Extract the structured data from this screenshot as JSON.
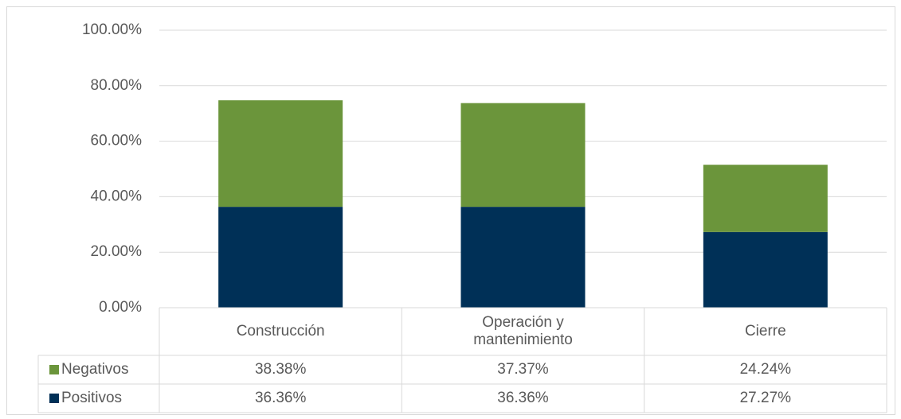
{
  "chart_data": {
    "type": "bar",
    "stacked": true,
    "categories": [
      "Construcción",
      "Operación y mantenimiento",
      "Cierre"
    ],
    "series": [
      {
        "name": "Positivos",
        "color": "#003057",
        "values": [
          36.36,
          36.36,
          27.27
        ],
        "value_labels": [
          "36.36%",
          "36.36%",
          "27.27%"
        ]
      },
      {
        "name": "Negativos",
        "color": "#6b953b",
        "values": [
          38.38,
          37.37,
          24.24
        ],
        "value_labels": [
          "38.38%",
          "37.37%",
          "24.24%"
        ]
      }
    ],
    "ylim": [
      0,
      100
    ],
    "yticks": [
      {
        "value": 0,
        "label": "0.00%"
      },
      {
        "value": 20,
        "label": "20.00%"
      },
      {
        "value": 40,
        "label": "40.00%"
      },
      {
        "value": 60,
        "label": "60.00%"
      },
      {
        "value": 80,
        "label": "80.00%"
      },
      {
        "value": 100,
        "label": "100.00%"
      }
    ],
    "grid": true
  }
}
